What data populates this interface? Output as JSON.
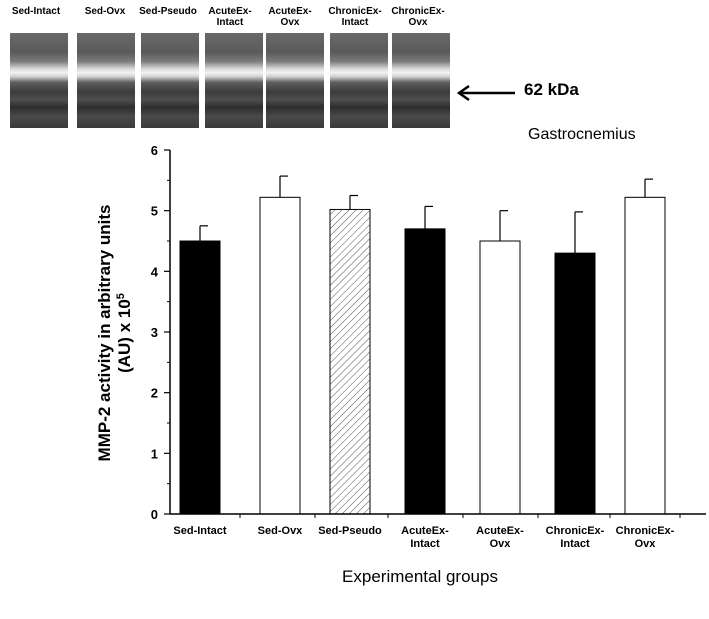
{
  "blot": {
    "lanes": [
      {
        "label": "Sed-Intact"
      },
      {
        "label": "Sed-Ovx"
      },
      {
        "label": "Sed-Pseudo"
      },
      {
        "label": "AcuteEx-\nIntact"
      },
      {
        "label": "AcuteEx-\nOvx"
      },
      {
        "label": "ChronicEx-\nIntact"
      },
      {
        "label": "ChronicEx-\nOvx"
      }
    ],
    "marker_label": "62 kDa"
  },
  "chart_data": {
    "type": "bar",
    "subtitle": "Gastrocnemius",
    "xlabel": "Experimental groups",
    "ylabel_line1": "MMP-2 activity in arbitrary units",
    "ylabel_line2_prefix": "(AU) x 10",
    "ylabel_line2_exp": "5",
    "ylim": [
      0,
      6
    ],
    "yticks": [
      0,
      1,
      2,
      3,
      4,
      5,
      6
    ],
    "grid": false,
    "categories": [
      [
        "Sed-Intact"
      ],
      [
        "Sed-Ovx"
      ],
      [
        "Sed-Pseudo"
      ],
      [
        "AcuteEx-",
        "Intact"
      ],
      [
        "AcuteEx-",
        "Ovx"
      ],
      [
        "ChronicEx-",
        "Intact"
      ],
      [
        "ChronicEx-",
        "Ovx"
      ]
    ],
    "values": [
      4.5,
      5.22,
      5.02,
      4.7,
      4.5,
      4.3,
      5.22
    ],
    "errors": [
      0.25,
      0.35,
      0.23,
      0.37,
      0.5,
      0.68,
      0.3
    ],
    "fills": [
      "black",
      "white",
      "hatched",
      "black",
      "white",
      "black",
      "white"
    ]
  }
}
